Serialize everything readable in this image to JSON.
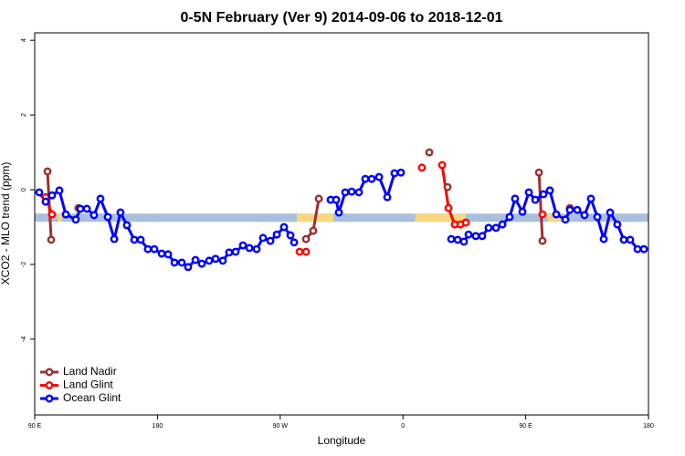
{
  "chart_data": {
    "type": "line",
    "title": "0-5N February (Ver 9)   2014-09-06 to 2018-12-01",
    "xlabel": "Longitude",
    "ylabel": "XCO2 - MLO trend (ppm)",
    "xlim": [
      90,
      540
    ],
    "ylim": [
      -6.03,
      4.2
    ],
    "xticks": [
      {
        "value": 90,
        "label": "90 E"
      },
      180,
      {
        "value": 270,
        "label": "90 W"
      },
      {
        "value": 360,
        "label": "0"
      },
      {
        "value": 450,
        "label": "90 E"
      },
      {
        "value": 540,
        "label": "180"
      }
    ],
    "yticks": [
      -4,
      -2,
      0,
      2,
      4
    ],
    "legend": "bottom-left",
    "surface_band": {
      "y": -0.75,
      "ocean_color": "#a9bfdc",
      "land_color": "#f8d77e",
      "land_segments": [
        [
          106.7,
          110
        ],
        [
          282.2,
          309
        ],
        [
          369,
          406
        ],
        [
          466,
          476
        ]
      ]
    },
    "series": [
      {
        "name": "Land Nadir",
        "color": "#993333",
        "x": [
          99.4,
          102.1,
          null,
          122.1,
          null,
          288.9,
          294.2,
          298.3,
          null,
          379.3,
          null,
          392.7,
          null,
          459.7,
          462.3,
          null,
          482.4
        ],
        "values": [
          0.49,
          -1.34,
          null,
          -0.49,
          null,
          -1.32,
          -1.1,
          -0.24,
          null,
          1.0,
          null,
          0.07,
          null,
          0.46,
          -1.37,
          null,
          -0.49
        ]
      },
      {
        "name": "Land Glint",
        "color": "#ff0000",
        "x": [
          98.0,
          102.7,
          null,
          284.2,
          288.9,
          null,
          373.9,
          null,
          388.7,
          393.4,
          398.0,
          402.1,
          406.1,
          null,
          462.3
        ],
        "values": [
          -0.2,
          -0.66,
          null,
          -1.66,
          -1.66,
          null,
          0.59,
          null,
          0.66,
          -0.49,
          -0.93,
          -0.93,
          -0.88,
          null,
          -0.66
        ]
      },
      {
        "name": "Ocean Glint",
        "color": "#0000ff",
        "x": [
          93.3,
          98.0,
          102.7,
          108.1,
          112.8,
          120.1,
          123.5,
          128.2,
          133.5,
          138.2,
          143.6,
          148.3,
          152.9,
          157.6,
          163.0,
          167.7,
          173.0,
          177.7,
          183.1,
          187.8,
          192.5,
          197.8,
          202.5,
          207.9,
          212.5,
          217.9,
          222.6,
          227.9,
          232.6,
          237.3,
          242.7,
          247.4,
          252.7,
          257.4,
          262.8,
          267.5,
          272.8,
          277.5,
          280.2,
          null,
          307.0,
          311.0,
          313.0,
          317.7,
          322.4,
          327.7,
          332.4,
          337.1,
          342.5,
          348.5,
          353.8,
          358.5,
          null,
          395.4,
          400.1,
          404.7,
          408.1,
          413.4,
          418.1,
          422.8,
          428.2,
          432.9,
          438.2,
          442.2,
          447.6,
          452.3,
          457.0,
          463.0,
          467.7,
          472.4,
          479.1,
          482.4,
          487.8,
          493.1,
          497.8,
          502.5,
          507.2,
          511.9,
          517.2,
          521.9,
          526.6,
          532.0,
          536.7
        ],
        "values": [
          -0.07,
          -0.32,
          -0.15,
          -0.02,
          -0.66,
          -0.8,
          -0.51,
          -0.51,
          -0.68,
          -0.24,
          -0.73,
          -1.32,
          -0.61,
          -0.95,
          -1.34,
          -1.34,
          -1.59,
          -1.59,
          -1.71,
          -1.73,
          -1.95,
          -1.95,
          -2.07,
          -1.88,
          -1.98,
          -1.9,
          -1.85,
          -1.9,
          -1.68,
          -1.66,
          -1.49,
          -1.56,
          -1.59,
          -1.29,
          -1.37,
          -1.2,
          -1.0,
          -1.22,
          -1.41,
          null,
          -0.27,
          -0.27,
          -0.61,
          -0.07,
          -0.05,
          -0.07,
          0.29,
          0.29,
          0.34,
          -0.2,
          0.44,
          0.46,
          null,
          -1.32,
          -1.34,
          -1.39,
          -1.2,
          -1.24,
          -1.24,
          -1.02,
          -1.02,
          -0.93,
          -0.73,
          -0.24,
          -0.59,
          -0.07,
          -0.27,
          -0.12,
          -0.02,
          -0.66,
          -0.8,
          -0.54,
          -0.54,
          -0.68,
          -0.24,
          -0.73,
          -1.32,
          -0.61,
          -0.93,
          -1.34,
          -1.34,
          -1.59,
          -1.59
        ]
      }
    ]
  }
}
